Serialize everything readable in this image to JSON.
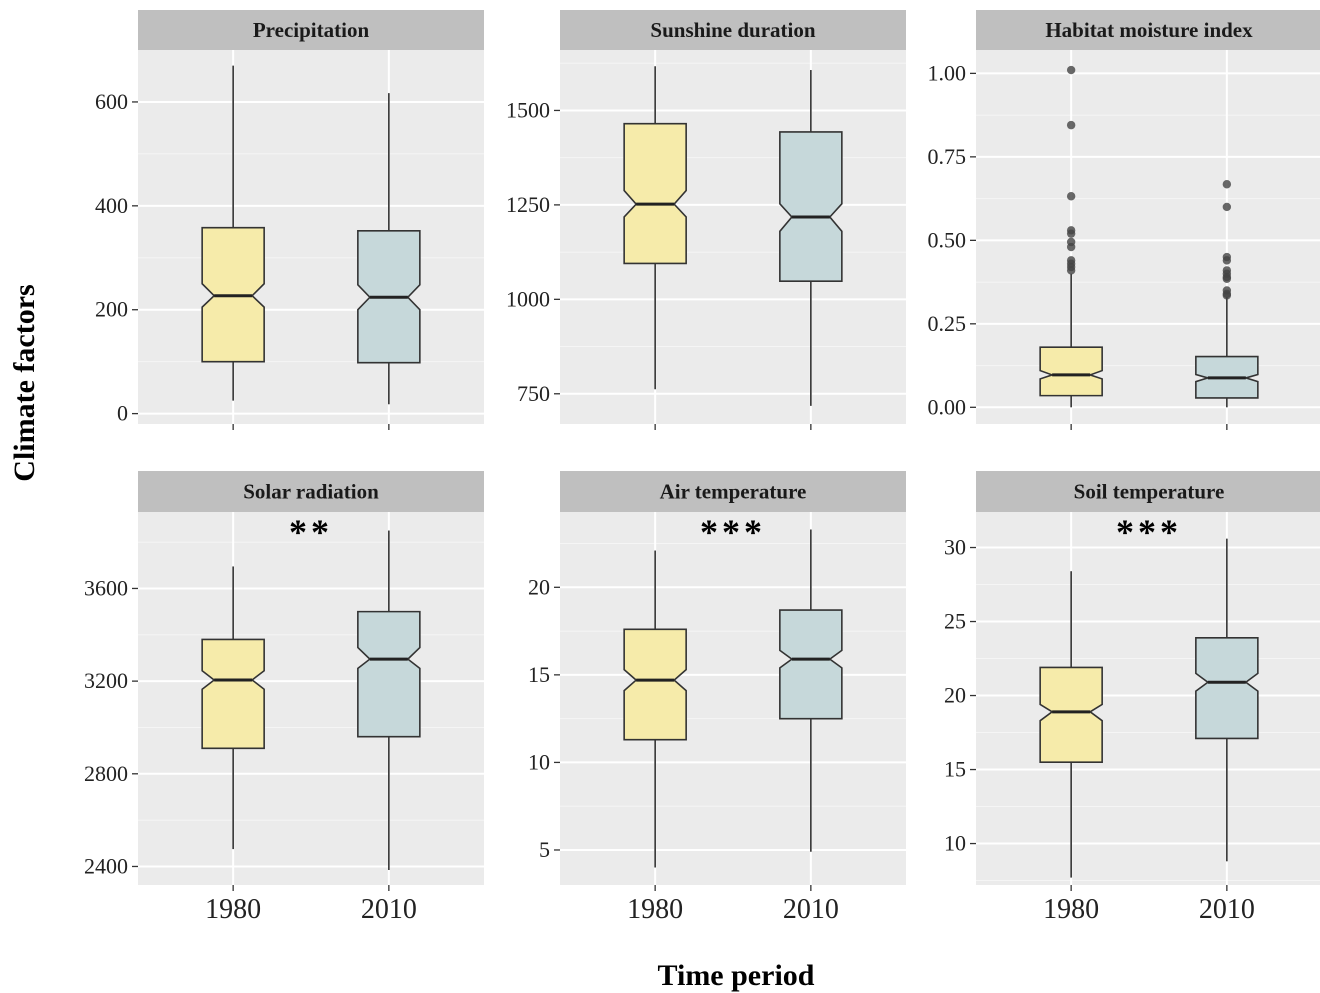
{
  "chart_data": {
    "type": "boxplot",
    "xlabel": "Time period",
    "ylabel": "Climate factors",
    "categories": [
      "1980",
      "2010"
    ],
    "colors": {
      "1980": "#f6ebaa",
      "2010": "#c6d8da",
      "panel_bg": "#ebebeb",
      "strip_bg": "#bfbfbf"
    },
    "notched": true,
    "panels": [
      {
        "title": "Precipitation",
        "ylim": [
          -20,
          700
        ],
        "yticks": [
          0,
          200,
          400,
          600
        ],
        "ytick_labels": [
          "0",
          "200",
          "400",
          "600"
        ],
        "significance": "",
        "boxes": [
          {
            "group": "1980",
            "whisker_low": 25,
            "q1": 100,
            "median": 227,
            "q3": 358,
            "whisker_high": 670,
            "notch_low": 205,
            "notch_high": 250,
            "outliers": []
          },
          {
            "group": "2010",
            "whisker_low": 18,
            "q1": 98,
            "median": 224,
            "q3": 352,
            "whisker_high": 617,
            "notch_low": 200,
            "notch_high": 248,
            "outliers": []
          }
        ]
      },
      {
        "title": "Sunshine duration",
        "ylim": [
          670,
          1660
        ],
        "yticks": [
          750,
          1000,
          1250,
          1500
        ],
        "ytick_labels": [
          "750",
          "1000",
          "1250",
          "1500"
        ],
        "significance": "",
        "boxes": [
          {
            "group": "1980",
            "whisker_low": 762,
            "q1": 1095,
            "median": 1252,
            "q3": 1465,
            "whisker_high": 1617,
            "notch_low": 1218,
            "notch_high": 1288,
            "outliers": []
          },
          {
            "group": "2010",
            "whisker_low": 718,
            "q1": 1048,
            "median": 1218,
            "q3": 1443,
            "whisker_high": 1607,
            "notch_low": 1180,
            "notch_high": 1253,
            "outliers": []
          }
        ]
      },
      {
        "title": "Habitat moisture index",
        "ylim": [
          -0.05,
          1.07
        ],
        "yticks": [
          0,
          0.25,
          0.5,
          0.75,
          1
        ],
        "ytick_labels": [
          "0.00",
          "0.25",
          "0.50",
          "0.75",
          "1.00"
        ],
        "significance": "",
        "boxes": [
          {
            "group": "1980",
            "whisker_low": 0.0,
            "q1": 0.035,
            "median": 0.097,
            "q3": 0.18,
            "whisker_high": 0.4,
            "notch_low": 0.085,
            "notch_high": 0.11,
            "outliers": [
              1.01,
              0.845,
              0.632,
              0.53,
              0.52,
              0.495,
              0.48,
              0.44,
              0.43,
              0.42,
              0.41
            ]
          },
          {
            "group": "2010",
            "whisker_low": 0.0,
            "q1": 0.028,
            "median": 0.088,
            "q3": 0.152,
            "whisker_high": 0.33,
            "notch_low": 0.077,
            "notch_high": 0.098,
            "outliers": [
              0.668,
              0.6,
              0.45,
              0.44,
              0.41,
              0.4,
              0.39,
              0.385,
              0.35,
              0.34,
              0.335
            ]
          }
        ]
      },
      {
        "title": "Solar radiation",
        "ylim": [
          2320,
          3930
        ],
        "yticks": [
          2400,
          2800,
          3200,
          3600
        ],
        "ytick_labels": [
          "2400",
          "2800",
          "3200",
          "3600"
        ],
        "significance": "**",
        "boxes": [
          {
            "group": "1980",
            "whisker_low": 2475,
            "q1": 2910,
            "median": 3205,
            "q3": 3380,
            "whisker_high": 3695,
            "notch_low": 3165,
            "notch_high": 3245,
            "outliers": []
          },
          {
            "group": "2010",
            "whisker_low": 2385,
            "q1": 2960,
            "median": 3295,
            "q3": 3500,
            "whisker_high": 3850,
            "notch_low": 3255,
            "notch_high": 3345,
            "outliers": []
          }
        ]
      },
      {
        "title": "Air temperature",
        "ylim": [
          3.0,
          24.3
        ],
        "yticks": [
          5,
          10,
          15,
          20
        ],
        "ytick_labels": [
          "5",
          "10",
          "15",
          "20"
        ],
        "significance": "***",
        "boxes": [
          {
            "group": "1980",
            "whisker_low": 4.0,
            "q1": 11.3,
            "median": 14.7,
            "q3": 17.6,
            "whisker_high": 22.1,
            "notch_low": 14.1,
            "notch_high": 15.3,
            "outliers": []
          },
          {
            "group": "2010",
            "whisker_low": 4.9,
            "q1": 12.5,
            "median": 15.9,
            "q3": 18.7,
            "whisker_high": 23.3,
            "notch_low": 15.4,
            "notch_high": 16.4,
            "outliers": []
          }
        ]
      },
      {
        "title": "Soil temperature",
        "ylim": [
          7.2,
          32.4
        ],
        "yticks": [
          10,
          15,
          20,
          25,
          30
        ],
        "ytick_labels": [
          "10",
          "15",
          "20",
          "25",
          "30"
        ],
        "significance": "***",
        "boxes": [
          {
            "group": "1980",
            "whisker_low": 7.7,
            "q1": 15.5,
            "median": 18.9,
            "q3": 21.9,
            "whisker_high": 28.4,
            "notch_low": 18.3,
            "notch_high": 19.4,
            "outliers": []
          },
          {
            "group": "2010",
            "whisker_low": 8.8,
            "q1": 17.1,
            "median": 20.9,
            "q3": 23.9,
            "whisker_high": 30.6,
            "notch_low": 20.3,
            "notch_high": 21.5,
            "outliers": []
          }
        ]
      }
    ]
  }
}
